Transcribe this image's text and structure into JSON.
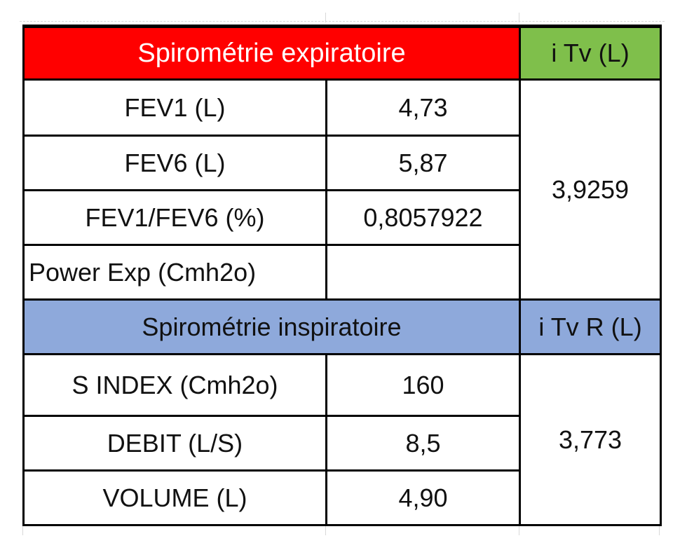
{
  "expiratory": {
    "title": "Spirométrie expiratoire",
    "itv_header": "i Tv (L)",
    "itv_value": "3,9259",
    "rows": [
      {
        "label": "FEV1 (L)",
        "value": "4,73"
      },
      {
        "label": "FEV6 (L)",
        "value": "5,87"
      },
      {
        "label": "FEV1/FEV6 (%)",
        "value": "0,8057922"
      },
      {
        "label": "Power Exp (Cmh2o)",
        "value": ""
      }
    ]
  },
  "inspiratory": {
    "title": "Spirométrie inspiratoire",
    "itv_header": "i Tv R (L)",
    "itv_value": "3,773",
    "rows": [
      {
        "label": "S INDEX (Cmh2o)",
        "value": "160"
      },
      {
        "label": "DEBIT (L/S)",
        "value": "8,5"
      },
      {
        "label": "VOLUME (L)",
        "value": "4,90"
      }
    ]
  },
  "colors": {
    "expiratory_header": "#ff0000",
    "itv_header": "#7fbf4b",
    "inspiratory_header": "#8ea9db"
  }
}
